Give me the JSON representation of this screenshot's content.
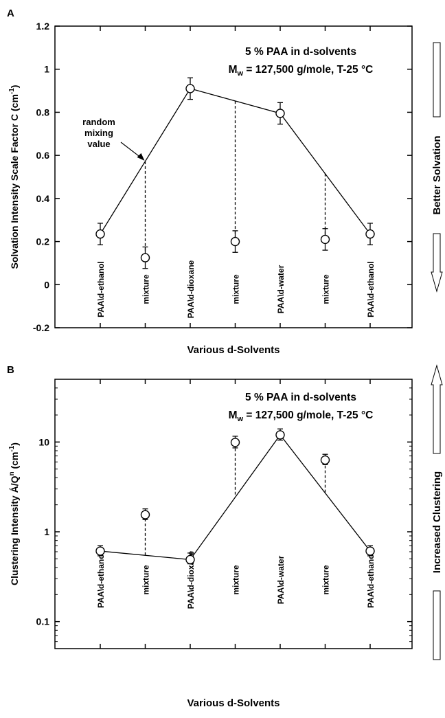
{
  "chart_data": [
    {
      "panel_label": "A",
      "type": "line",
      "title_line1": "5 % PAA in d-solvents",
      "title_line2_prefix": "M",
      "title_line2_sub": "w",
      "title_line2_rest": " = 127,500 g/mole, T-25 °C",
      "ylabel": "Solvation Intensity Scale Factor  C (cm",
      "ylabel_sup": "-1",
      "ylabel_end": ")",
      "xlabel": "Various d-Solvents",
      "ylim": [
        -0.2,
        1.2
      ],
      "scale": "linear",
      "y_ticks": [
        -0.2,
        0,
        0.2,
        0.4,
        0.6,
        0.8,
        1,
        1.2
      ],
      "y_tick_labels": [
        "-0.2",
        "0",
        "0.2",
        "0.4",
        "0.6",
        "0.8",
        "1",
        "1.2"
      ],
      "categories": [
        "PAA\\d-ethanol",
        "mixture",
        "PAA\\d-dioxane",
        "mixture",
        "PAA\\d-water",
        "mixture",
        "PAA\\d-ethanol"
      ],
      "pure_points": [
        {
          "index": 0,
          "y": 0.235,
          "err": 0.05
        },
        {
          "index": 2,
          "y": 0.91,
          "err": 0.05
        },
        {
          "index": 4,
          "y": 0.795,
          "err": 0.05
        },
        {
          "index": 6,
          "y": 0.235,
          "err": 0.05
        }
      ],
      "mixture_points": [
        {
          "index": 1,
          "y": 0.125,
          "err": 0.05,
          "random_mixing": 0.572
        },
        {
          "index": 3,
          "y": 0.2,
          "err": 0.05,
          "random_mixing": 0.852
        },
        {
          "index": 5,
          "y": 0.21,
          "err": 0.05,
          "random_mixing": 0.515
        }
      ],
      "annotation": [
        "random",
        "mixing",
        "value"
      ],
      "side_label": "Better Solvation"
    },
    {
      "panel_label": "B",
      "type": "line",
      "title_line1": "5 % PAA in d-solvents",
      "title_line2_prefix": "M",
      "title_line2_sub": "w",
      "title_line2_rest": " = 127,500 g/mole, T-25 °C",
      "ylabel": "Clustering Intensity Á/Q",
      "ylabel_sup": "n",
      "ylabel_end": "  (cm",
      "ylabel_sup2": "-1",
      "ylabel_end2": ")",
      "xlabel": "Various d-Solvents",
      "ylim": [
        0.05,
        50
      ],
      "scale": "log",
      "y_ticks": [
        0.1,
        1,
        10
      ],
      "y_tick_labels": [
        "0.1",
        "1",
        "10"
      ],
      "categories": [
        "PAA\\d-ethanol",
        "mixture",
        "PAA\\d-dioxane",
        "mixture",
        "PAA\\d-water",
        "mixture",
        "PAA\\d-ethanol"
      ],
      "pure_points": [
        {
          "index": 0,
          "y": 0.61,
          "lo": 0.54,
          "hi": 0.7
        },
        {
          "index": 2,
          "y": 0.49,
          "lo": 0.44,
          "hi": 0.58
        },
        {
          "index": 4,
          "y": 12.0,
          "lo": 10.5,
          "hi": 14.0
        },
        {
          "index": 6,
          "y": 0.61,
          "lo": 0.54,
          "hi": 0.7
        }
      ],
      "mixture_points": [
        {
          "index": 1,
          "y": 1.55,
          "lo": 1.37,
          "hi": 1.8,
          "random_mixing": 0.55
        },
        {
          "index": 3,
          "y": 9.9,
          "lo": 8.6,
          "hi": 11.6,
          "random_mixing": 2.6
        },
        {
          "index": 5,
          "y": 6.3,
          "lo": 5.6,
          "hi": 7.3,
          "random_mixing": 2.75
        }
      ],
      "side_label": "Increased Clustering"
    }
  ]
}
